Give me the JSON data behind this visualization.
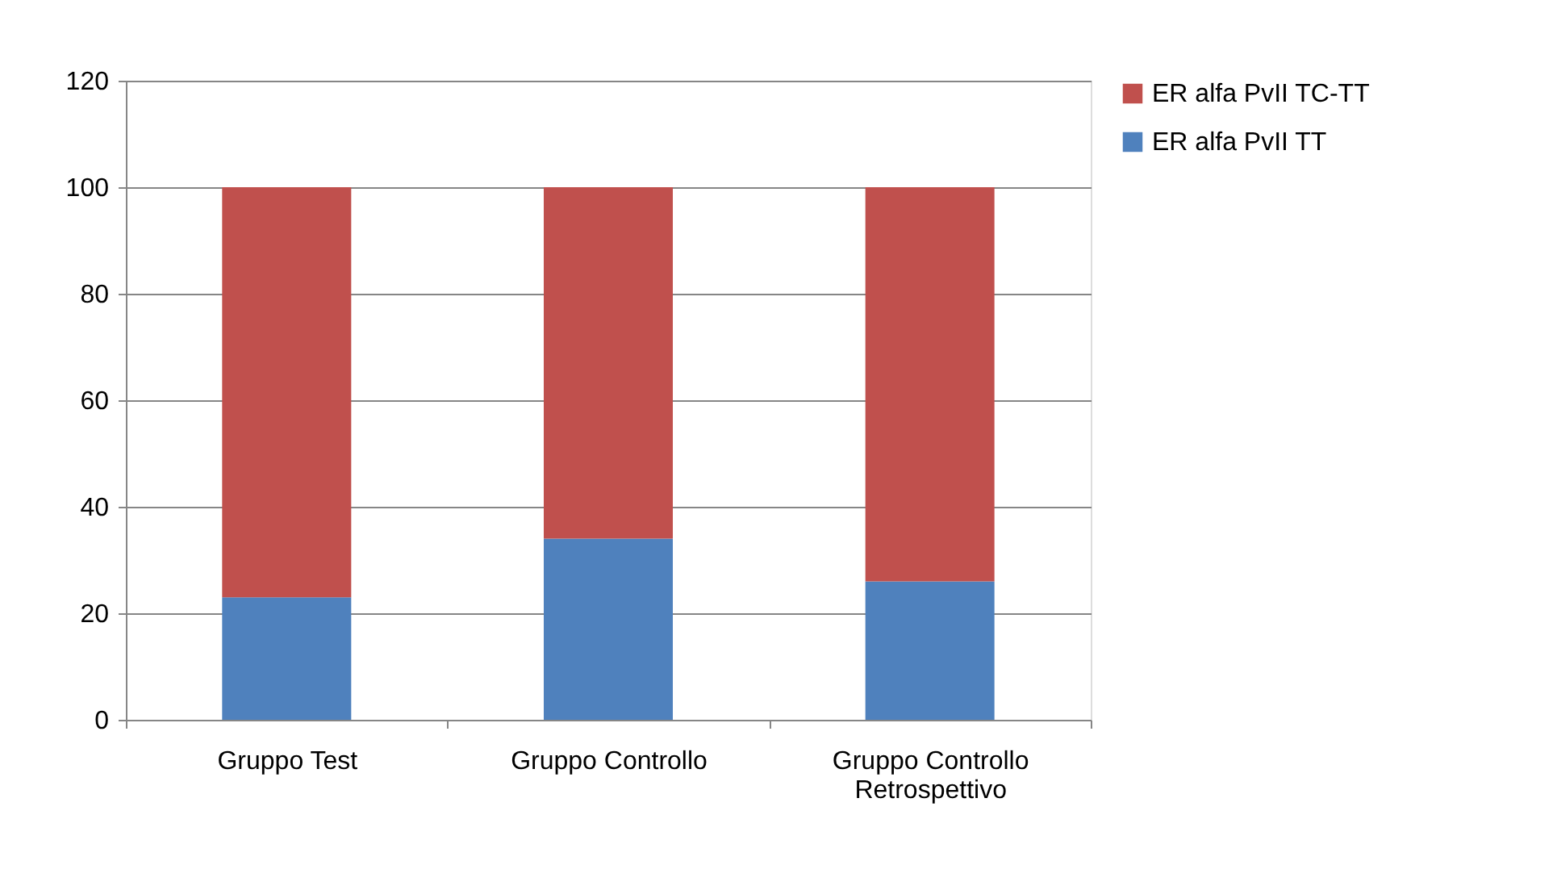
{
  "chart_data": {
    "type": "bar",
    "stacked": true,
    "categories": [
      "Gruppo Test",
      "Gruppo Controllo",
      "Gruppo Controllo Retrospettivo"
    ],
    "series": [
      {
        "name": "ER alfa PvII TT",
        "color": "#4f81bd",
        "values": [
          23,
          34,
          26
        ]
      },
      {
        "name": "ER alfa PvII TC-TT",
        "color": "#c0504d",
        "values": [
          77,
          66,
          74
        ]
      }
    ],
    "ylim": [
      0,
      120
    ],
    "yticks": [
      0,
      20,
      40,
      60,
      80,
      100,
      120
    ],
    "grid": "y",
    "legend": "right"
  }
}
